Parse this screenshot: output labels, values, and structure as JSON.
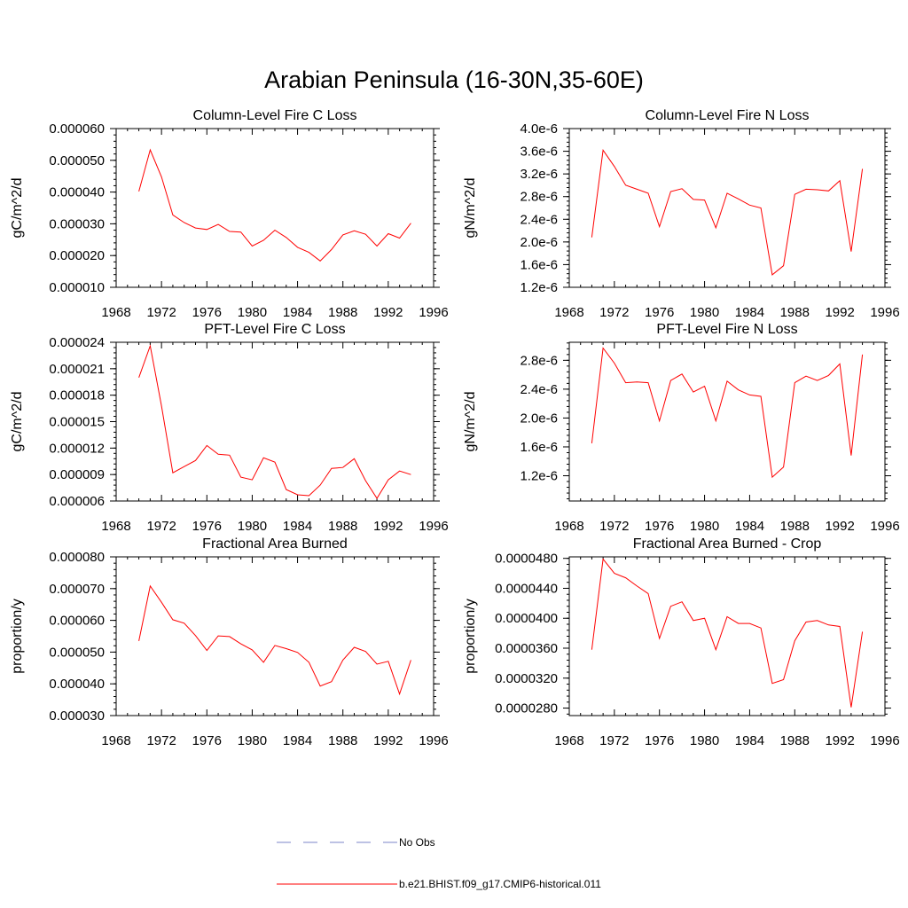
{
  "figure": {
    "title": "Arabian Peninsula (16-30N,35-60E)"
  },
  "legend": {
    "entries": [
      {
        "label": "No Obs",
        "color": "#7b86c8",
        "style": "dashed"
      },
      {
        "label": "b.e21.BHIST.f09_g17.CMIP6-historical.011",
        "color": "#ff0000",
        "style": "solid"
      }
    ]
  },
  "chart_data": [
    {
      "type": "line",
      "title": "Column-Level Fire C Loss",
      "ylabel": "gC/m^2/d",
      "xlim": [
        1968,
        1996
      ],
      "ylim": [
        1e-05,
        6e-05
      ],
      "xticks": [
        1968,
        1972,
        1976,
        1980,
        1984,
        1988,
        1992,
        1996
      ],
      "yticks": [
        1e-05,
        2e-05,
        3e-05,
        4e-05,
        5e-05,
        6e-05
      ],
      "ytick_labels": [
        "0.000010",
        "0.000020",
        "0.000030",
        "0.000040",
        "0.000050",
        "0.000060"
      ],
      "x": [
        1970,
        1971,
        1972,
        1973,
        1974,
        1975,
        1976,
        1977,
        1978,
        1979,
        1980,
        1981,
        1982,
        1983,
        1984,
        1985,
        1986,
        1987,
        1988,
        1989,
        1990,
        1991,
        1992,
        1993,
        1994
      ],
      "series": [
        {
          "name": "b.e21.BHIST.f09_g17.CMIP6-historical.011",
          "color": "#ff0000",
          "values": [
            4.02e-05,
            5.33e-05,
            4.48e-05,
            3.28e-05,
            3.04e-05,
            2.87e-05,
            2.82e-05,
            2.98e-05,
            2.76e-05,
            2.74e-05,
            2.3e-05,
            2.48e-05,
            2.8e-05,
            2.57e-05,
            2.26e-05,
            2.1e-05,
            1.83e-05,
            2.19e-05,
            2.65e-05,
            2.78e-05,
            2.67e-05,
            2.3e-05,
            2.69e-05,
            2.55e-05,
            3.02e-05
          ]
        }
      ]
    },
    {
      "type": "line",
      "title": "Column-Level Fire N Loss",
      "ylabel": "gN/m^2/d",
      "xlim": [
        1968,
        1996
      ],
      "ylim": [
        1.2e-06,
        4e-06
      ],
      "xticks": [
        1968,
        1972,
        1976,
        1980,
        1984,
        1988,
        1992,
        1996
      ],
      "yticks": [
        1.2e-06,
        1.6e-06,
        2e-06,
        2.4e-06,
        2.8e-06,
        3.2e-06,
        3.6e-06,
        4e-06
      ],
      "ytick_labels": [
        "1.2e-6",
        "1.6e-6",
        "2.0e-6",
        "2.4e-6",
        "2.8e-6",
        "3.2e-6",
        "3.6e-6",
        "4.0e-6"
      ],
      "x": [
        1970,
        1971,
        1972,
        1973,
        1974,
        1975,
        1976,
        1977,
        1978,
        1979,
        1980,
        1981,
        1982,
        1983,
        1984,
        1985,
        1986,
        1987,
        1988,
        1989,
        1990,
        1991,
        1992,
        1993,
        1994
      ],
      "series": [
        {
          "name": "b.e21.BHIST.f09_g17.CMIP6-historical.011",
          "color": "#ff0000",
          "values": [
            2.08e-06,
            3.62e-06,
            3.33e-06,
            3e-06,
            2.93e-06,
            2.86e-06,
            2.27e-06,
            2.89e-06,
            2.94e-06,
            2.75e-06,
            2.74e-06,
            2.25e-06,
            2.86e-06,
            2.76e-06,
            2.65e-06,
            2.6e-06,
            1.42e-06,
            1.58e-06,
            2.84e-06,
            2.93e-06,
            2.92e-06,
            2.9e-06,
            3.08e-06,
            1.83e-06,
            3.29e-06
          ]
        }
      ]
    },
    {
      "type": "line",
      "title": "PFT-Level Fire C Loss",
      "ylabel": "gC/m^2/d",
      "xlim": [
        1968,
        1996
      ],
      "ylim": [
        6e-06,
        2.4e-05
      ],
      "xticks": [
        1968,
        1972,
        1976,
        1980,
        1984,
        1988,
        1992,
        1996
      ],
      "yticks": [
        6e-06,
        9e-06,
        1.2e-05,
        1.5e-05,
        1.8e-05,
        2.1e-05,
        2.4e-05
      ],
      "ytick_labels": [
        "0.000006",
        "0.000009",
        "0.000012",
        "0.000015",
        "0.000018",
        "0.000021",
        "0.000024"
      ],
      "x": [
        1970,
        1971,
        1972,
        1973,
        1974,
        1975,
        1976,
        1977,
        1978,
        1979,
        1980,
        1981,
        1982,
        1983,
        1984,
        1985,
        1986,
        1987,
        1988,
        1989,
        1990,
        1991,
        1992,
        1993,
        1994
      ],
      "series": [
        {
          "name": "b.e21.BHIST.f09_g17.CMIP6-historical.011",
          "color": "#ff0000",
          "values": [
            2e-05,
            2.36e-05,
            1.68e-05,
            9.2e-06,
            9.9e-06,
            1.06e-05,
            1.23e-05,
            1.13e-05,
            1.12e-05,
            8.7e-06,
            8.4e-06,
            1.09e-05,
            1.04e-05,
            7.3e-06,
            6.7e-06,
            6.6e-06,
            7.8e-06,
            9.7e-06,
            9.8e-06,
            1.08e-05,
            8.3e-06,
            6.3e-06,
            8.4e-06,
            9.4e-06,
            9e-06
          ]
        }
      ]
    },
    {
      "type": "line",
      "title": "PFT-Level Fire N Loss",
      "ylabel": "gN/m^2/d",
      "xlim": [
        1968,
        1996
      ],
      "ylim": [
        8.5e-07,
        3.05e-06
      ],
      "xticks": [
        1968,
        1972,
        1976,
        1980,
        1984,
        1988,
        1992,
        1996
      ],
      "yticks": [
        1.2e-06,
        1.6e-06,
        2e-06,
        2.4e-06,
        2.8e-06
      ],
      "ytick_labels": [
        "1.2e-6",
        "1.6e-6",
        "2.0e-6",
        "2.4e-6",
        "2.8e-6"
      ],
      "x": [
        1970,
        1971,
        1972,
        1973,
        1974,
        1975,
        1976,
        1977,
        1978,
        1979,
        1980,
        1981,
        1982,
        1983,
        1984,
        1985,
        1986,
        1987,
        1988,
        1989,
        1990,
        1991,
        1992,
        1993,
        1994
      ],
      "series": [
        {
          "name": "b.e21.BHIST.f09_g17.CMIP6-historical.011",
          "color": "#ff0000",
          "values": [
            1.65e-06,
            2.97e-06,
            2.76e-06,
            2.49e-06,
            2.5e-06,
            2.49e-06,
            1.96e-06,
            2.52e-06,
            2.61e-06,
            2.36e-06,
            2.44e-06,
            1.96e-06,
            2.51e-06,
            2.39e-06,
            2.32e-06,
            2.3e-06,
            1.18e-06,
            1.32e-06,
            2.49e-06,
            2.58e-06,
            2.52e-06,
            2.59e-06,
            2.75e-06,
            1.48e-06,
            2.88e-06
          ]
        }
      ]
    },
    {
      "type": "line",
      "title": "Fractional Area Burned",
      "ylabel": "proportion/y",
      "xlim": [
        1968,
        1996
      ],
      "ylim": [
        3e-05,
        8e-05
      ],
      "xticks": [
        1968,
        1972,
        1976,
        1980,
        1984,
        1988,
        1992,
        1996
      ],
      "yticks": [
        3e-05,
        4e-05,
        5e-05,
        6e-05,
        7e-05,
        8e-05
      ],
      "ytick_labels": [
        "0.000030",
        "0.000040",
        "0.000050",
        "0.000060",
        "0.000070",
        "0.000080"
      ],
      "x": [
        1970,
        1971,
        1972,
        1973,
        1974,
        1975,
        1976,
        1977,
        1978,
        1979,
        1980,
        1981,
        1982,
        1983,
        1984,
        1985,
        1986,
        1987,
        1988,
        1989,
        1990,
        1991,
        1992,
        1993,
        1994
      ],
      "series": [
        {
          "name": "b.e21.BHIST.f09_g17.CMIP6-historical.011",
          "color": "#ff0000",
          "values": [
            5.35e-05,
            7.08e-05,
            6.57e-05,
            6.02e-05,
            5.91e-05,
            5.52e-05,
            5.05e-05,
            5.51e-05,
            5.49e-05,
            5.26e-05,
            5.07e-05,
            4.68e-05,
            5.21e-05,
            5.11e-05,
            4.99e-05,
            4.68e-05,
            3.93e-05,
            4.07e-05,
            4.75e-05,
            5.15e-05,
            5.02e-05,
            4.62e-05,
            4.71e-05,
            3.68e-05,
            4.75e-05
          ]
        }
      ]
    },
    {
      "type": "line",
      "title": "Fractional Area Burned - Crop",
      "ylabel": "proportion/y",
      "xlim": [
        1968,
        1996
      ],
      "ylim": [
        2.7e-05,
        4.82e-05
      ],
      "xticks": [
        1968,
        1972,
        1976,
        1980,
        1984,
        1988,
        1992,
        1996
      ],
      "yticks": [
        2.8e-05,
        3.2e-05,
        3.6e-05,
        4e-05,
        4.4e-05,
        4.8e-05
      ],
      "ytick_labels": [
        "0.0000280",
        "0.0000320",
        "0.0000360",
        "0.0000400",
        "0.0000440",
        "0.0000480"
      ],
      "x": [
        1970,
        1971,
        1972,
        1973,
        1974,
        1975,
        1976,
        1977,
        1978,
        1979,
        1980,
        1981,
        1982,
        1983,
        1984,
        1985,
        1986,
        1987,
        1988,
        1989,
        1990,
        1991,
        1992,
        1993,
        1994
      ],
      "series": [
        {
          "name": "b.e21.BHIST.f09_g17.CMIP6-historical.011",
          "color": "#ff0000",
          "values": [
            3.58e-05,
            4.79e-05,
            4.6e-05,
            4.54e-05,
            4.43e-05,
            4.33e-05,
            3.73e-05,
            4.16e-05,
            4.22e-05,
            3.97e-05,
            4e-05,
            3.58e-05,
            4.02e-05,
            3.93e-05,
            3.93e-05,
            3.87e-05,
            3.13e-05,
            3.18e-05,
            3.7e-05,
            3.95e-05,
            3.97e-05,
            3.91e-05,
            3.89e-05,
            2.81e-05,
            3.82e-05
          ]
        }
      ]
    }
  ]
}
